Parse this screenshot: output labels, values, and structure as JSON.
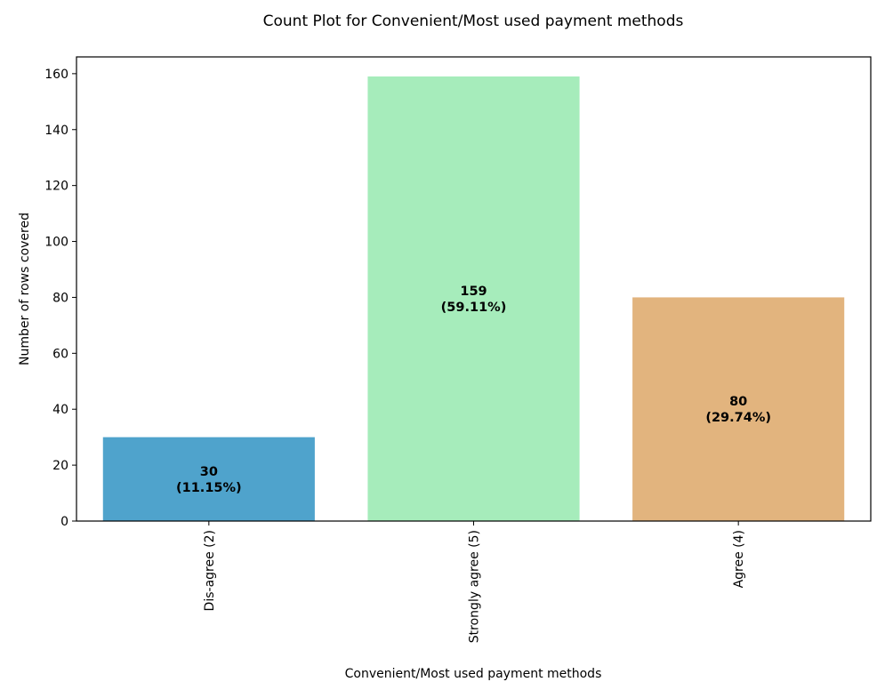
{
  "chart_data": {
    "type": "bar",
    "title": "Count Plot for Convenient/Most used payment methods",
    "xlabel": "Convenient/Most used payment methods",
    "ylabel": "Number of rows covered",
    "categories": [
      "Dis-agree (2)",
      "Strongly agree (5)",
      "Agree (4)"
    ],
    "values": [
      30,
      159,
      80
    ],
    "data_labels": [
      [
        "30",
        "(11.15%)"
      ],
      [
        "159",
        "(59.11%)"
      ],
      [
        "80",
        "(29.74%)"
      ]
    ],
    "colors": [
      "#4fa3cc",
      "#a6ecbb",
      "#e2b47e"
    ],
    "ylim": [
      0,
      166
    ],
    "yticks": [
      0,
      20,
      40,
      60,
      80,
      100,
      120,
      140,
      160
    ],
    "grid": false,
    "legend": "none"
  }
}
